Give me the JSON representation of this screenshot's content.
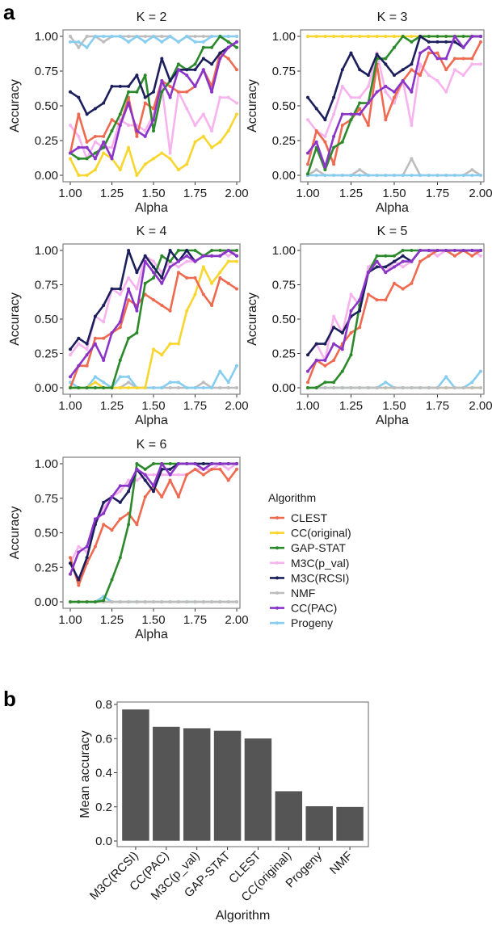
{
  "panel_labels": {
    "a": "a",
    "b": "b"
  },
  "chart_data": [
    {
      "type": "line",
      "x": [
        1.0,
        1.05,
        1.1,
        1.15,
        1.2,
        1.25,
        1.3,
        1.35,
        1.4,
        1.45,
        1.5,
        1.55,
        1.6,
        1.65,
        1.7,
        1.75,
        1.8,
        1.85,
        1.9,
        1.95,
        2.0
      ],
      "xlabel": "Alpha",
      "ylabel": "Accuracy",
      "xlim": [
        1.0,
        2.0
      ],
      "ylim": [
        0,
        1
      ],
      "xticks": [
        "1.00",
        "1.25",
        "1.50",
        "1.75",
        "2.00"
      ],
      "yticks": [
        "0.00",
        "0.25",
        "0.50",
        "0.75",
        "1.00"
      ],
      "legend": {
        "title": "Algorithm",
        "placement": "right",
        "order": [
          "CLEST",
          "CC(original)",
          "GAP-STAT",
          "M3C(p_val)",
          "M3C(RCSI)",
          "NMF",
          "CC(PAC)",
          "Progeny"
        ]
      },
      "colors": {
        "CLEST": "#ee6a50",
        "CC(original)": "#f8d62e",
        "GAP-STAT": "#2c8a2c",
        "M3C(p_val)": "#f7b3ee",
        "M3C(RCSI)": "#1c1f5c",
        "NMF": "#bdbdbd",
        "CC(PAC)": "#8b35c8",
        "Progeny": "#87cdf0"
      },
      "panels": [
        {
          "title": "K = 2",
          "series": {
            "NMF": [
              1,
              0.92,
              1,
              1,
              0.96,
              1,
              1,
              1,
              1,
              1,
              1,
              1,
              1,
              0.96,
              1,
              1,
              1,
              1,
              1,
              1,
              1
            ],
            "Progeny": [
              0.96,
              0.96,
              0.92,
              1,
              1,
              1,
              1,
              0.96,
              1,
              0.96,
              1,
              0.96,
              1,
              0.96,
              1,
              0.96,
              0.96,
              1,
              1,
              1,
              1
            ],
            "CC(original)": [
              0.12,
              0,
              0,
              0.04,
              0.16,
              0.12,
              0.04,
              0.2,
              0,
              0.08,
              0.12,
              0.16,
              0.12,
              0.04,
              0.08,
              0.24,
              0.28,
              0.2,
              0.24,
              0.32,
              0.44
            ],
            "M3C(p_val)": [
              0.36,
              0.28,
              0.12,
              0.24,
              0.2,
              0.2,
              0.4,
              0.36,
              0.36,
              0.32,
              0.44,
              0.64,
              0.16,
              0.6,
              0.48,
              0.36,
              0.44,
              0.32,
              0.56,
              0.56,
              0.52
            ],
            "CLEST": [
              0.16,
              0.44,
              0.24,
              0.28,
              0.28,
              0.4,
              0.36,
              0.56,
              0.28,
              0.52,
              0.48,
              0.68,
              0.64,
              0.6,
              0.6,
              0.64,
              0.76,
              0.64,
              0.88,
              0.84,
              0.76
            ],
            "GAP-STAT": [
              0.16,
              0.12,
              0.12,
              0.16,
              0.2,
              0.32,
              0.44,
              0.6,
              0.6,
              0.72,
              0.32,
              0.6,
              0.68,
              0.8,
              0.76,
              0.8,
              0.92,
              0.92,
              1,
              0.96,
              0.92
            ],
            "M3C(RCSI)": [
              0.6,
              0.56,
              0.44,
              0.48,
              0.52,
              0.64,
              0.64,
              0.64,
              0.72,
              0.56,
              0.6,
              0.84,
              0.68,
              0.76,
              0.76,
              0.76,
              0.84,
              0.8,
              0.88,
              0.92,
              0.96
            ],
            "CC(PAC)": [
              0.16,
              0.2,
              0.2,
              0.12,
              0.24,
              0.12,
              0.36,
              0.52,
              0.32,
              0.28,
              0.4,
              0.68,
              0.56,
              0.76,
              0.72,
              0.64,
              0.76,
              0.6,
              0.84,
              0.92,
              0.96
            ]
          }
        },
        {
          "title": "K = 3",
          "series": {
            "NMF": [
              0,
              0.04,
              0,
              0,
              0,
              0,
              0.04,
              0,
              0,
              0,
              0,
              0,
              0.12,
              0,
              0,
              0,
              0,
              0,
              0,
              0.04,
              0
            ],
            "Progeny": [
              0,
              0,
              0,
              0,
              0,
              0,
              0,
              0,
              0,
              0,
              0,
              0,
              0,
              0,
              0,
              0,
              0,
              0,
              0,
              0,
              0
            ],
            "CC(original)": [
              1,
              1,
              1,
              1,
              1,
              1,
              1,
              1,
              1,
              1,
              1,
              1,
              1,
              1,
              1,
              1,
              1,
              1,
              1,
              1,
              1
            ],
            "M3C(p_val)": [
              0.4,
              0.32,
              0.28,
              0.44,
              0.64,
              0.56,
              0.56,
              0.64,
              0.88,
              0.6,
              0.52,
              0.68,
              0.36,
              0.8,
              0.72,
              0.68,
              0.6,
              0.76,
              0.72,
              0.8,
              0.8
            ],
            "CLEST": [
              0.08,
              0.32,
              0.24,
              0.08,
              0.36,
              0.4,
              0.48,
              0.36,
              0.8,
              0.4,
              0.56,
              0.68,
              0.76,
              0.72,
              0.88,
              0.88,
              0.76,
              0.84,
              0.84,
              0.84,
              0.96
            ],
            "GAP-STAT": [
              0.01,
              0.2,
              0.04,
              0.2,
              0.24,
              0.4,
              0.52,
              0.52,
              0.84,
              0.84,
              0.92,
              1,
              0.96,
              1,
              1,
              1,
              1,
              1,
              1,
              1,
              1
            ],
            "M3C(RCSI)": [
              0.56,
              0.48,
              0.4,
              0.56,
              0.76,
              0.88,
              0.76,
              0.72,
              0.87,
              0.8,
              0.72,
              0.76,
              0.8,
              1,
              0.96,
              0.96,
              0.96,
              0.96,
              0.92,
              1,
              1
            ],
            "CC(PAC)": [
              0.16,
              0.24,
              0.06,
              0.28,
              0.44,
              0.44,
              0.44,
              0.52,
              0.6,
              0.64,
              0.6,
              0.68,
              0.6,
              0.88,
              0.92,
              0.84,
              0.84,
              1,
              0.92,
              1,
              1
            ]
          }
        },
        {
          "title": "K = 4",
          "series": {
            "NMF": [
              0,
              0,
              0,
              0,
              0,
              0,
              0,
              0.04,
              0,
              0,
              0,
              0,
              0,
              0,
              0,
              0,
              0.04,
              0,
              0,
              0,
              0
            ],
            "Progeny": [
              0.04,
              0,
              0,
              0.08,
              0.04,
              0,
              0.08,
              0.08,
              0,
              0,
              0,
              0,
              0.04,
              0.04,
              0,
              0,
              0,
              0,
              0.12,
              0.04,
              0.16
            ],
            "CC(original)": [
              0,
              0,
              0,
              0.04,
              0,
              0,
              0,
              0,
              0,
              0,
              0.28,
              0.24,
              0.32,
              0.32,
              0.56,
              0.68,
              0.88,
              0.76,
              0.84,
              0.92,
              0.92
            ],
            "M3C(p_val)": [
              0.24,
              0.32,
              0.28,
              0.52,
              0.48,
              0.72,
              0.68,
              0.8,
              0.72,
              0.96,
              0.92,
              0.84,
              0.92,
              0.88,
              0.92,
              0.92,
              0.96,
              1,
              1,
              0.96,
              1
            ],
            "CLEST": [
              0,
              0.16,
              0.16,
              0.36,
              0.36,
              0.4,
              0.44,
              0.64,
              0.6,
              0.68,
              0.64,
              0.6,
              0.56,
              0.84,
              0.8,
              0.8,
              0.68,
              0.6,
              0.8,
              0.76,
              0.72
            ],
            "GAP-STAT": [
              0,
              0,
              0,
              0,
              0,
              0,
              0.2,
              0.36,
              0.4,
              0.76,
              0.8,
              0.96,
              0.92,
              1,
              1,
              1,
              0.96,
              1,
              1,
              1,
              1
            ],
            "M3C(RCSI)": [
              0.28,
              0.36,
              0.32,
              0.52,
              0.6,
              0.72,
              0.72,
              1,
              0.84,
              0.96,
              0.88,
              0.8,
              1,
              0.92,
              1,
              0.92,
              0.96,
              0.96,
              0.96,
              1,
              0.96
            ],
            "CC(PAC)": [
              0.08,
              0.16,
              0.24,
              0.32,
              0.2,
              0.4,
              0.48,
              0.72,
              0.56,
              0.92,
              0.84,
              0.76,
              0.88,
              0.92,
              0.96,
              0.92,
              0.96,
              0.96,
              0.96,
              1,
              0.96
            ]
          }
        },
        {
          "title": "K = 5",
          "series": {
            "CC(original)": [
              0,
              0,
              0,
              0,
              0,
              0,
              0,
              0,
              0,
              0,
              0,
              0,
              0,
              0,
              0,
              0,
              0,
              0,
              0,
              0,
              0
            ],
            "Progeny": [
              0,
              0,
              0,
              0,
              0,
              0,
              0,
              0,
              0,
              0.04,
              0,
              0,
              0,
              0,
              0,
              0,
              0.08,
              0,
              0,
              0.04,
              0.12
            ],
            "NMF": [
              0,
              0,
              0,
              0,
              0,
              0,
              0,
              0,
              0,
              0,
              0,
              0,
              0,
              0,
              0,
              0,
              0,
              0,
              0,
              0,
              0
            ],
            "M3C(p_val)": [
              0.24,
              0.32,
              0.2,
              0.52,
              0.4,
              0.68,
              0.6,
              0.88,
              0.92,
              0.84,
              0.92,
              0.88,
              0.92,
              1,
              1,
              0.96,
              1,
              1,
              1,
              1,
              0.96
            ],
            "CLEST": [
              0.04,
              0.2,
              0.16,
              0.2,
              0.32,
              0.4,
              0.44,
              0.68,
              0.64,
              0.64,
              0.76,
              0.72,
              0.76,
              0.92,
              0.96,
              1,
              1,
              0.96,
              1,
              0.96,
              1
            ],
            "GAP-STAT": [
              0,
              0,
              0.04,
              0.04,
              0.12,
              0.24,
              0.6,
              0.84,
              0.96,
              0.96,
              0.96,
              1,
              1,
              1,
              1,
              1,
              1,
              1,
              1,
              1,
              1
            ],
            "M3C(RCSI)": [
              0.24,
              0.32,
              0.32,
              0.44,
              0.4,
              0.52,
              0.56,
              0.84,
              0.88,
              0.88,
              0.92,
              0.96,
              0.92,
              1,
              1,
              1,
              1,
              1,
              1,
              1,
              1
            ],
            "CC(PAC)": [
              0.12,
              0.2,
              0.2,
              0.32,
              0.28,
              0.56,
              0.64,
              0.84,
              0.92,
              0.84,
              0.88,
              0.92,
              0.92,
              1,
              1,
              1,
              1,
              1,
              1,
              1,
              1
            ]
          }
        },
        {
          "title": "K = 6",
          "series": {
            "CC(original)": [
              0,
              0,
              0,
              0,
              0,
              0,
              0,
              0,
              0,
              0,
              0,
              0,
              0,
              0,
              0,
              0,
              0,
              0,
              0,
              0,
              0
            ],
            "Progeny": [
              0,
              0,
              0,
              0,
              0.04,
              0,
              0,
              0,
              0,
              0,
              0,
              0,
              0,
              0,
              0,
              0,
              0,
              0,
              0,
              0,
              0
            ],
            "NMF": [
              0,
              0,
              0,
              0,
              0,
              0,
              0,
              0,
              0,
              0,
              0,
              0,
              0,
              0,
              0,
              0,
              0,
              0,
              0,
              0,
              0
            ],
            "M3C(p_val)": [
              0.28,
              0.4,
              0.36,
              0.56,
              0.68,
              0.76,
              0.8,
              0.88,
              0.88,
              0.92,
              0.92,
              0.92,
              0.92,
              0.92,
              0.92,
              0.96,
              0.96,
              0.96,
              1,
              0.96,
              1
            ],
            "CLEST": [
              0.32,
              0.12,
              0.28,
              0.4,
              0.56,
              0.52,
              0.6,
              0.64,
              0.56,
              0.76,
              0.84,
              0.76,
              0.88,
              0.76,
              0.92,
              0.96,
              0.92,
              0.96,
              0.96,
              0.88,
              0.96
            ],
            "GAP-STAT": [
              0,
              0,
              0,
              0,
              0.01,
              0.16,
              0.32,
              0.56,
              1,
              0.96,
              1,
              1,
              1,
              1,
              1,
              1,
              1,
              1,
              1,
              1,
              1
            ],
            "M3C(RCSI)": [
              0.28,
              0.16,
              0.32,
              0.56,
              0.72,
              0.76,
              0.72,
              0.8,
              0.96,
              0.88,
              0.8,
              0.96,
              0.96,
              1,
              1,
              1,
              1,
              1,
              1,
              1,
              1
            ],
            "CC(PAC)": [
              0.2,
              0.36,
              0.4,
              0.6,
              0.64,
              0.76,
              0.84,
              0.84,
              0.96,
              0.92,
              0.84,
              1,
              0.92,
              1,
              1,
              1,
              0.96,
              1,
              1,
              1,
              1
            ]
          }
        }
      ]
    },
    {
      "type": "bar",
      "categories": [
        "M3C(RCSI)",
        "CC(PAC)",
        "M3C(p_val)",
        "GAP-STAT",
        "CLEST",
        "CC(original)",
        "Progeny",
        "NMF"
      ],
      "values": [
        0.772,
        0.67,
        0.662,
        0.647,
        0.602,
        0.293,
        0.205,
        0.201
      ],
      "xlabel": "Algorithm",
      "ylabel": "Mean accuracy",
      "ylim": [
        0,
        0.8
      ],
      "yticks": [
        "0.0",
        "0.2",
        "0.4",
        "0.6",
        "0.8"
      ],
      "bar_color": "#555555"
    }
  ]
}
